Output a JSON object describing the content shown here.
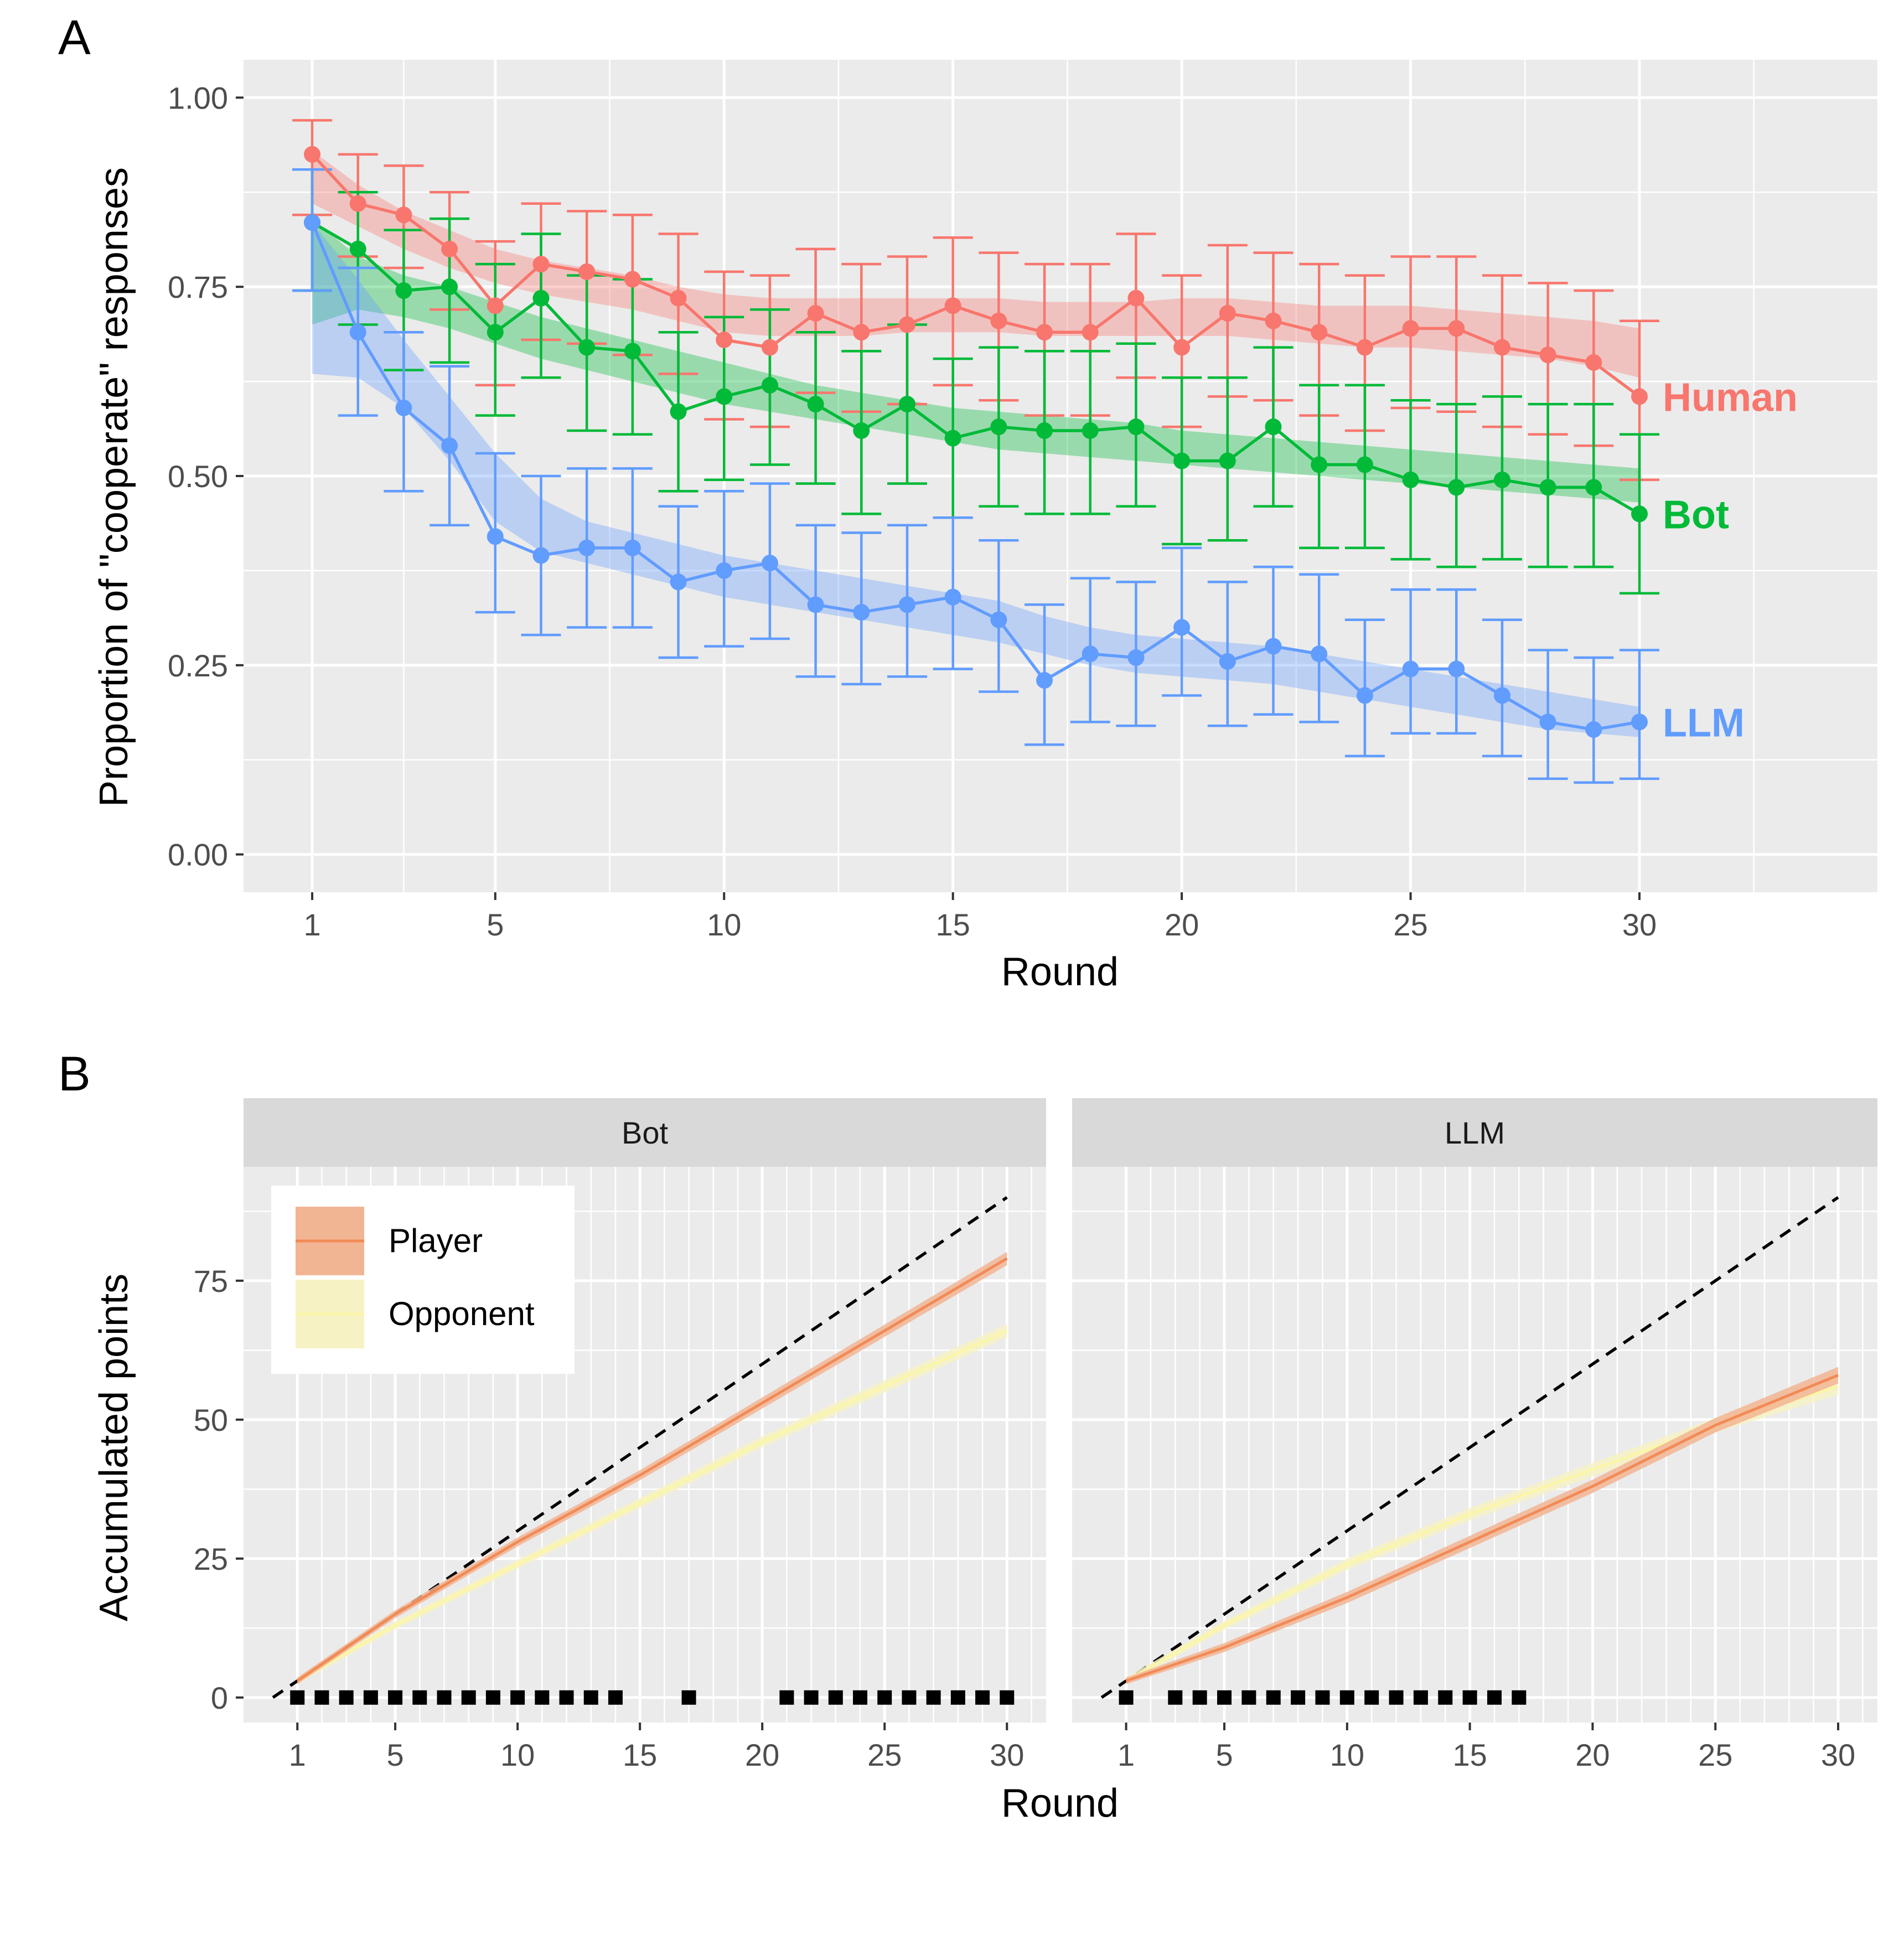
{
  "chart_data": [
    {
      "panel": "A",
      "type": "line",
      "xlabel": "Round",
      "ylabel": "Proportion of \"cooperate\" responses",
      "xlim": [
        -0.5,
        35.2
      ],
      "ylim": [
        -0.05,
        1.05
      ],
      "x_ticks": [
        1,
        5,
        10,
        15,
        20,
        25,
        30
      ],
      "x_tick_labels": [
        "1",
        "5",
        "10",
        "15",
        "20",
        "25",
        "30"
      ],
      "y_ticks": [
        0,
        0.25,
        0.5,
        0.75,
        1.0
      ],
      "y_tick_labels": [
        "0.00",
        "0.25",
        "0.50",
        "0.75",
        "1.00"
      ],
      "grid": true,
      "rounds": [
        1,
        2,
        3,
        4,
        5,
        6,
        7,
        8,
        9,
        10,
        11,
        12,
        13,
        14,
        15,
        16,
        17,
        18,
        19,
        20,
        21,
        22,
        23,
        24,
        25,
        26,
        27,
        28,
        29,
        30
      ],
      "series": [
        {
          "name": "Human",
          "color": "#F8766D",
          "values": [
            0.925,
            0.86,
            0.845,
            0.8,
            0.725,
            0.78,
            0.77,
            0.76,
            0.735,
            0.68,
            0.67,
            0.715,
            0.69,
            0.7,
            0.725,
            0.705,
            0.69,
            0.69,
            0.735,
            0.67,
            0.715,
            0.705,
            0.69,
            0.67,
            0.695,
            0.695,
            0.67,
            0.66,
            0.65,
            0.605
          ],
          "err_lo": [
            0.845,
            0.79,
            0.775,
            0.72,
            0.62,
            0.68,
            0.675,
            0.66,
            0.635,
            0.575,
            0.565,
            0.61,
            0.585,
            0.595,
            0.62,
            0.6,
            0.58,
            0.58,
            0.63,
            0.565,
            0.605,
            0.6,
            0.58,
            0.56,
            0.59,
            0.585,
            0.565,
            0.555,
            0.54,
            0.495
          ],
          "err_hi": [
            0.97,
            0.925,
            0.91,
            0.875,
            0.81,
            0.86,
            0.85,
            0.845,
            0.82,
            0.77,
            0.765,
            0.8,
            0.78,
            0.79,
            0.815,
            0.795,
            0.78,
            0.78,
            0.82,
            0.765,
            0.805,
            0.795,
            0.78,
            0.765,
            0.79,
            0.79,
            0.765,
            0.755,
            0.745,
            0.705
          ],
          "band_lo": [
            0.86,
            0.83,
            0.8,
            0.775,
            0.755,
            0.74,
            0.73,
            0.72,
            0.705,
            0.69,
            0.685,
            0.685,
            0.685,
            0.69,
            0.69,
            0.69,
            0.685,
            0.685,
            0.685,
            0.685,
            0.685,
            0.68,
            0.675,
            0.67,
            0.67,
            0.665,
            0.66,
            0.655,
            0.645,
            0.63
          ],
          "band_hi": [
            0.93,
            0.885,
            0.85,
            0.825,
            0.8,
            0.785,
            0.775,
            0.765,
            0.75,
            0.74,
            0.735,
            0.735,
            0.735,
            0.735,
            0.735,
            0.735,
            0.73,
            0.73,
            0.73,
            0.735,
            0.735,
            0.73,
            0.725,
            0.725,
            0.725,
            0.72,
            0.715,
            0.71,
            0.705,
            0.695
          ],
          "label": "Human"
        },
        {
          "name": "Bot",
          "color": "#00BA38",
          "values": [
            0.835,
            0.8,
            0.745,
            0.75,
            0.69,
            0.735,
            0.67,
            0.665,
            0.585,
            0.605,
            0.62,
            0.595,
            0.56,
            0.595,
            0.55,
            0.565,
            0.56,
            0.56,
            0.565,
            0.52,
            0.52,
            0.565,
            0.515,
            0.515,
            0.495,
            0.485,
            0.495,
            0.485,
            0.485,
            0.45
          ],
          "err_lo": [
            0.745,
            0.7,
            0.64,
            0.65,
            0.58,
            0.63,
            0.56,
            0.555,
            0.48,
            0.495,
            0.515,
            0.49,
            0.45,
            0.49,
            0.445,
            0.46,
            0.45,
            0.45,
            0.46,
            0.41,
            0.415,
            0.46,
            0.405,
            0.405,
            0.39,
            0.38,
            0.39,
            0.38,
            0.38,
            0.345
          ],
          "err_hi": [
            0.905,
            0.875,
            0.825,
            0.84,
            0.78,
            0.82,
            0.765,
            0.76,
            0.69,
            0.71,
            0.72,
            0.69,
            0.665,
            0.7,
            0.655,
            0.67,
            0.665,
            0.665,
            0.675,
            0.63,
            0.63,
            0.67,
            0.62,
            0.62,
            0.6,
            0.595,
            0.605,
            0.595,
            0.595,
            0.555
          ],
          "band_lo": [
            0.7,
            0.72,
            0.71,
            0.695,
            0.675,
            0.655,
            0.64,
            0.625,
            0.61,
            0.595,
            0.585,
            0.575,
            0.565,
            0.555,
            0.545,
            0.535,
            0.53,
            0.525,
            0.52,
            0.515,
            0.51,
            0.505,
            0.5,
            0.495,
            0.49,
            0.485,
            0.48,
            0.475,
            0.47,
            0.465
          ],
          "band_hi": [
            0.84,
            0.79,
            0.765,
            0.75,
            0.73,
            0.71,
            0.695,
            0.68,
            0.665,
            0.65,
            0.635,
            0.62,
            0.61,
            0.6,
            0.59,
            0.585,
            0.58,
            0.575,
            0.57,
            0.56,
            0.555,
            0.55,
            0.545,
            0.54,
            0.535,
            0.53,
            0.525,
            0.52,
            0.515,
            0.51
          ],
          "label": "Bot"
        },
        {
          "name": "LLM",
          "color": "#619CFF",
          "values": [
            0.835,
            0.69,
            0.59,
            0.54,
            0.42,
            0.395,
            0.405,
            0.405,
            0.36,
            0.375,
            0.385,
            0.33,
            0.32,
            0.33,
            0.34,
            0.31,
            0.23,
            0.265,
            0.26,
            0.3,
            0.255,
            0.275,
            0.265,
            0.21,
            0.245,
            0.245,
            0.21,
            0.175,
            0.165,
            0.175
          ],
          "err_lo": [
            0.745,
            0.58,
            0.48,
            0.435,
            0.32,
            0.29,
            0.3,
            0.3,
            0.26,
            0.275,
            0.285,
            0.235,
            0.225,
            0.235,
            0.245,
            0.215,
            0.145,
            0.175,
            0.17,
            0.21,
            0.17,
            0.185,
            0.175,
            0.13,
            0.16,
            0.16,
            0.13,
            0.1,
            0.095,
            0.1
          ],
          "err_hi": [
            0.905,
            0.775,
            0.69,
            0.645,
            0.53,
            0.5,
            0.51,
            0.51,
            0.46,
            0.48,
            0.49,
            0.435,
            0.425,
            0.435,
            0.445,
            0.415,
            0.33,
            0.365,
            0.36,
            0.405,
            0.36,
            0.38,
            0.37,
            0.31,
            0.35,
            0.35,
            0.31,
            0.27,
            0.26,
            0.27
          ],
          "band_lo": [
            0.635,
            0.63,
            0.59,
            0.52,
            0.44,
            0.4,
            0.385,
            0.37,
            0.355,
            0.34,
            0.33,
            0.32,
            0.31,
            0.3,
            0.29,
            0.28,
            0.265,
            0.25,
            0.24,
            0.235,
            0.23,
            0.225,
            0.215,
            0.205,
            0.195,
            0.185,
            0.175,
            0.165,
            0.16,
            0.155
          ],
          "band_hi": [
            0.835,
            0.76,
            0.68,
            0.605,
            0.53,
            0.47,
            0.44,
            0.425,
            0.41,
            0.395,
            0.385,
            0.375,
            0.365,
            0.355,
            0.345,
            0.335,
            0.315,
            0.3,
            0.29,
            0.285,
            0.28,
            0.275,
            0.265,
            0.255,
            0.245,
            0.235,
            0.225,
            0.215,
            0.205,
            0.195
          ],
          "label": "LLM"
        }
      ]
    },
    {
      "panel": "B",
      "type": "line",
      "xlabel": "Round",
      "ylabel": "Accumulated points",
      "xlim": [
        -1.2,
        31.6
      ],
      "ylim": [
        -4.5,
        95.5
      ],
      "x_ticks": [
        1,
        5,
        10,
        15,
        20,
        25,
        30
      ],
      "x_tick_labels": [
        "1",
        "5",
        "10",
        "15",
        "20",
        "25",
        "30"
      ],
      "y_ticks": [
        0,
        25,
        50,
        75
      ],
      "y_tick_labels": [
        "0",
        "25",
        "50",
        "75"
      ],
      "grid": true,
      "legend": {
        "position": "top-left",
        "entries": [
          {
            "name": "Player",
            "color": "#F28A55",
            "fill": "#F2B594"
          },
          {
            "name": "Opponent",
            "color": "#FBF6A8",
            "fill": "#F7F2C4"
          }
        ]
      },
      "reference_line": {
        "style": "dashed",
        "color": "#000000",
        "x": [
          0,
          30
        ],
        "y": [
          0,
          90
        ]
      },
      "facets": [
        {
          "strip": "Bot",
          "round_points": [
            1,
            5,
            10,
            15,
            20,
            25,
            30
          ],
          "player": [
            3,
            15,
            28,
            40,
            53,
            66,
            79
          ],
          "player_band_half": [
            0.6,
            0.7,
            0.8,
            0.9,
            1.0,
            1.1,
            1.2
          ],
          "opponent": [
            3,
            13,
            24,
            35,
            46,
            56,
            66
          ],
          "opponent_band_half": [
            0.6,
            0.7,
            0.8,
            0.9,
            1.0,
            1.1,
            1.2
          ],
          "marker_rounds": [
            1,
            2,
            3,
            4,
            5,
            6,
            7,
            8,
            9,
            10,
            11,
            12,
            13,
            14,
            17,
            21,
            22,
            23,
            24,
            25,
            26,
            27,
            28,
            29,
            30
          ]
        },
        {
          "strip": "LLM",
          "round_points": [
            1,
            5,
            10,
            15,
            20,
            25,
            30
          ],
          "player": [
            3,
            9,
            18,
            28,
            38,
            49,
            58
          ],
          "player_band_half": [
            0.6,
            0.8,
            1.0,
            1.1,
            1.2,
            1.3,
            1.5
          ],
          "opponent": [
            3,
            13,
            24,
            33,
            41,
            49,
            56
          ],
          "opponent_band_half": [
            0.6,
            0.8,
            1.0,
            1.1,
            1.2,
            1.3,
            1.5
          ],
          "marker_rounds": [
            1,
            3,
            4,
            5,
            6,
            7,
            8,
            9,
            10,
            11,
            12,
            13,
            14,
            15,
            16,
            17
          ]
        }
      ]
    }
  ],
  "panel_letters": {
    "a": "A",
    "b": "B"
  }
}
